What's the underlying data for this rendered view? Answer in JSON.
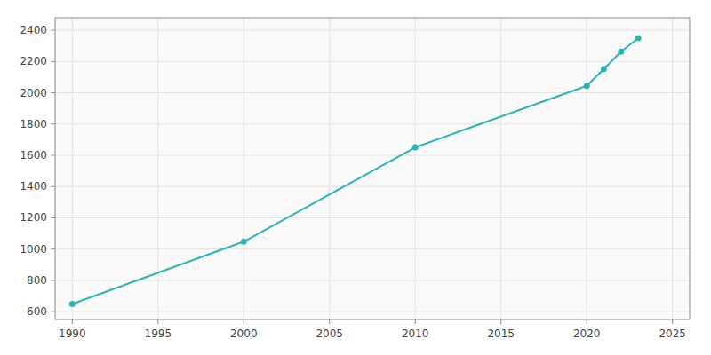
{
  "chart_data": {
    "type": "line",
    "x": [
      1990,
      2000,
      2010,
      2020,
      2021,
      2022,
      2023
    ],
    "values": [
      649,
      1048,
      1651,
      2044,
      2152,
      2263,
      2349
    ],
    "color": "#2ab5b5",
    "marker": "circle",
    "xlim": [
      1989,
      2026
    ],
    "ylim": [
      550,
      2480
    ],
    "xticks": [
      1990,
      1995,
      2000,
      2005,
      2010,
      2015,
      2020,
      2025
    ],
    "yticks": [
      600,
      800,
      1000,
      1200,
      1400,
      1600,
      1800,
      2000,
      2200,
      2400
    ],
    "grid": true
  }
}
